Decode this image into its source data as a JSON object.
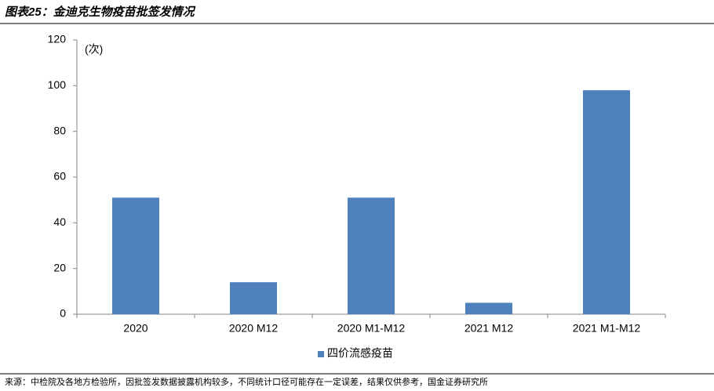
{
  "chart_data": {
    "type": "bar",
    "title": "图表25：金迪克生物疫苗批签发情况",
    "y_unit": "(次)",
    "categories": [
      "2020",
      "2020 M12",
      "2020 M1-M12",
      "2021 M12",
      "2021 M1-M12"
    ],
    "series": [
      {
        "name": "四价流感疫苗",
        "color": "#4f81bd",
        "values": [
          51,
          14,
          51,
          5,
          98
        ]
      }
    ],
    "ylim": [
      0,
      120
    ],
    "yticks": [
      0,
      20,
      40,
      60,
      80,
      100,
      120
    ],
    "grid": false,
    "legend": "bottom",
    "source": "来源：中检院及各地方检验所，因批签发数据披露机构较多，不同统计口径可能存在一定误差，结果仅供参考，国金证券研究所"
  }
}
